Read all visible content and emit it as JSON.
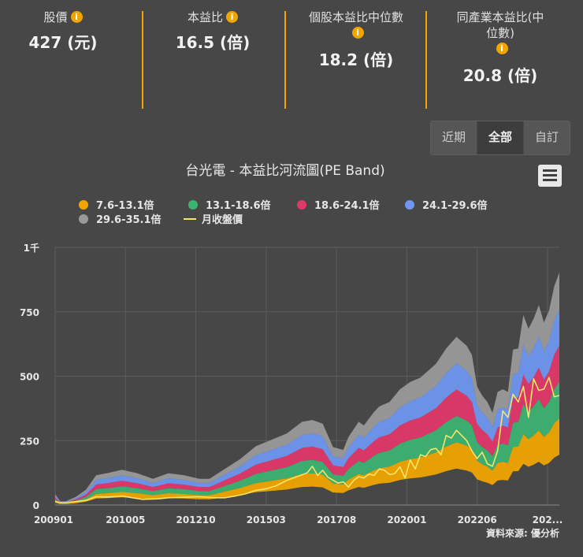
{
  "stats": [
    {
      "label": "股價",
      "value": "427 (元)"
    },
    {
      "label": "本益比",
      "value": "16.5 (倍)"
    },
    {
      "label": "個股本益比中位數",
      "value": "18.2 (倍)"
    },
    {
      "label": "同產業本益比(中位數)",
      "label_line1": "同產業本益比(中",
      "label_line2": "位數)",
      "value": "20.8 (倍)"
    }
  ],
  "info_icon": "i",
  "range_buttons": {
    "recent": "近期",
    "all": "全部",
    "custom": "自訂",
    "active": "all"
  },
  "colors": {
    "band1": "#f0a500",
    "band2": "#3cb371",
    "band3": "#e0386a",
    "band4": "#6f97f0",
    "band5": "#9a9a9a",
    "price_line": "#f3e46a",
    "accent": "#f0a500"
  },
  "chart_data": {
    "type": "area",
    "title": "台光電 - 本益比河流圖(PE Band)",
    "source": "資料來源: 優分析",
    "legend": [
      {
        "name": "7.6-13.1倍",
        "color": "#f0a500"
      },
      {
        "name": "13.1-18.6倍",
        "color": "#3cb371"
      },
      {
        "name": "18.6-24.1倍",
        "color": "#e0386a"
      },
      {
        "name": "24.1-29.6倍",
        "color": "#6f97f0"
      },
      {
        "name": "29.6-35.1倍",
        "color": "#9a9a9a"
      },
      {
        "name": "月收盤價",
        "color": "#f3e46a"
      }
    ],
    "y_ticks": [
      "0",
      "250",
      "500",
      "750",
      "1千"
    ],
    "x_ticks": [
      "200901",
      "201005",
      "201210",
      "201503",
      "201708",
      "202001",
      "202206",
      "202..."
    ],
    "ylim": [
      0,
      1000
    ],
    "band_multipliers": [
      7.6,
      13.1,
      18.6,
      24.1,
      29.6,
      35.1
    ],
    "t": [
      0,
      2,
      4,
      8,
      12,
      16,
      20,
      26,
      32,
      38,
      44,
      50,
      56,
      60,
      66,
      72,
      78,
      84,
      90,
      96,
      100,
      104,
      108,
      112,
      114,
      118,
      120,
      124,
      126,
      130,
      134,
      138,
      142,
      148,
      152,
      156,
      160,
      162,
      164,
      166,
      168,
      170,
      172,
      174,
      176,
      178,
      180,
      182,
      184,
      186,
      188,
      190,
      192,
      194,
      196
    ],
    "eps": [
      1.2,
      0.4,
      0.4,
      0.9,
      1.7,
      3.3,
      3.5,
      3.9,
      3.5,
      2.9,
      3.5,
      3.3,
      2.9,
      2.9,
      4.0,
      5.1,
      6.5,
      7.2,
      7.9,
      9.2,
      9.4,
      9.0,
      6.4,
      6.1,
      7.5,
      9.2,
      8.8,
      10.3,
      10.9,
      11.4,
      12.8,
      13.6,
      14.1,
      15.6,
      17.3,
      18.6,
      17.6,
      16.6,
      13.1,
      12.1,
      11.4,
      10.2,
      12.5,
      12.8,
      12.5,
      17.2,
      17.3,
      21.0,
      19.5,
      20.6,
      22.1,
      20.2,
      21.5,
      24.2,
      25.7
    ],
    "price_t": [
      0,
      2,
      4,
      8,
      12,
      16,
      20,
      24,
      26,
      30,
      34,
      40,
      44,
      50,
      56,
      62,
      66,
      70,
      74,
      78,
      82,
      86,
      90,
      94,
      98,
      100,
      102,
      104,
      106,
      110,
      112,
      114,
      116,
      118,
      120,
      122,
      124,
      126,
      128,
      130,
      132,
      134,
      136,
      138,
      140,
      142,
      144,
      146,
      148,
      150,
      152,
      154,
      156,
      158,
      160,
      162,
      164,
      166,
      168,
      170,
      172,
      174,
      176,
      178,
      180,
      182,
      184,
      186,
      188,
      190,
      192,
      194,
      196
    ],
    "price": [
      14,
      9,
      9,
      13,
      18,
      32,
      31,
      33,
      35,
      28,
      22,
      24,
      28,
      30,
      32,
      28,
      28,
      35,
      43,
      57,
      63,
      75,
      95,
      110,
      125,
      150,
      115,
      135,
      108,
      85,
      90,
      70,
      95,
      110,
      105,
      120,
      115,
      140,
      135,
      118,
      122,
      148,
      105,
      175,
      140,
      195,
      188,
      215,
      220,
      195,
      270,
      260,
      290,
      270,
      250,
      210,
      180,
      205,
      160,
      150,
      210,
      365,
      340,
      430,
      400,
      460,
      340,
      490,
      445,
      450,
      495,
      420,
      425
    ]
  }
}
